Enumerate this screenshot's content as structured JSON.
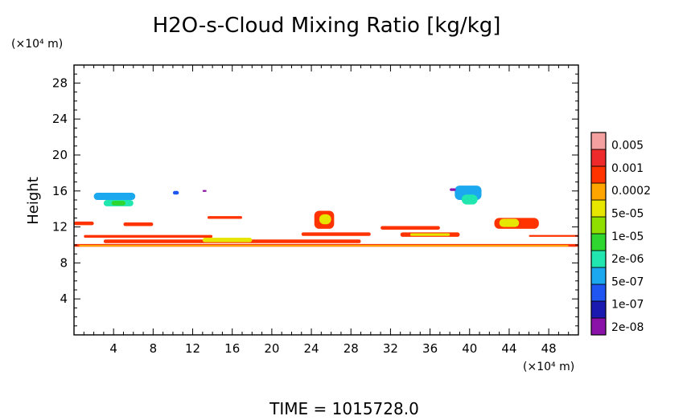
{
  "chart_data": {
    "type": "heatmap",
    "title": "H2O-s-Cloud Mixing Ratio [kg/kg]",
    "ylabel": "Height",
    "y_unit": "(×10⁴ m)",
    "x_unit": "(×10⁴ m)",
    "xlim": [
      0,
      51
    ],
    "ylim": [
      0,
      30
    ],
    "x_ticks": [
      4,
      8,
      12,
      16,
      20,
      24,
      28,
      32,
      36,
      40,
      44,
      48
    ],
    "y_ticks": [
      4,
      8,
      12,
      16,
      20,
      24,
      28
    ],
    "grid": false,
    "footer": "TIME  =  1015728.0",
    "colorbar": {
      "colors": [
        "#8a12a8",
        "#1a1ab0",
        "#1f55f0",
        "#1ba8ee",
        "#22e6b0",
        "#2fd62f",
        "#8fe000",
        "#e6e600",
        "#ffa500",
        "#ff3300",
        "#ee2a2a",
        "#f5a0a0"
      ],
      "labels": [
        "2e-08",
        "1e-07",
        "5e-07",
        "2e-06",
        "1e-05",
        "5e-05",
        "0.0002",
        "0.001",
        "0.005"
      ]
    },
    "regions": [
      {
        "level": 9,
        "x": [
          0,
          51
        ],
        "y": [
          9.8,
          10.1
        ]
      },
      {
        "level": 8,
        "x": [
          0.5,
          50
        ],
        "y": [
          9.9,
          10.0
        ]
      },
      {
        "level": 9,
        "x": [
          3,
          29
        ],
        "y": [
          10.2,
          10.6
        ]
      },
      {
        "level": 7,
        "x": [
          13,
          18
        ],
        "y": [
          10.3,
          10.8
        ]
      },
      {
        "level": 9,
        "x": [
          1,
          14
        ],
        "y": [
          10.8,
          11.1
        ]
      },
      {
        "level": 9,
        "x": [
          23,
          30
        ],
        "y": [
          11.0,
          11.4
        ]
      },
      {
        "level": 9,
        "x": [
          33,
          39
        ],
        "y": [
          10.9,
          11.4
        ]
      },
      {
        "level": 7,
        "x": [
          34,
          38
        ],
        "y": [
          11.0,
          11.3
        ]
      },
      {
        "level": 9,
        "x": [
          46,
          51
        ],
        "y": [
          10.9,
          11.1
        ]
      },
      {
        "level": 9,
        "x": [
          31,
          37
        ],
        "y": [
          11.7,
          12.1
        ]
      },
      {
        "level": 9,
        "x": [
          0,
          2
        ],
        "y": [
          12.2,
          12.6
        ]
      },
      {
        "level": 9,
        "x": [
          5,
          8
        ],
        "y": [
          12.1,
          12.5
        ]
      },
      {
        "level": 9,
        "x": [
          24.3,
          26.3
        ],
        "y": [
          11.8,
          13.8
        ]
      },
      {
        "level": 7,
        "x": [
          24.8,
          26.0
        ],
        "y": [
          12.3,
          13.4
        ]
      },
      {
        "level": 9,
        "x": [
          42.5,
          47
        ],
        "y": [
          11.8,
          13.0
        ]
      },
      {
        "level": 7,
        "x": [
          43,
          45
        ],
        "y": [
          12.0,
          12.9
        ]
      },
      {
        "level": 9,
        "x": [
          13.5,
          17
        ],
        "y": [
          12.9,
          13.2
        ]
      },
      {
        "level": 3,
        "x": [
          2.0,
          6.2
        ],
        "y": [
          15.0,
          15.8
        ]
      },
      {
        "level": 4,
        "x": [
          3.0,
          6.0
        ],
        "y": [
          14.3,
          15.0
        ]
      },
      {
        "level": 5,
        "x": [
          3.8,
          5.2
        ],
        "y": [
          14.4,
          14.9
        ]
      },
      {
        "level": 3,
        "x": [
          38.5,
          41.2
        ],
        "y": [
          15.0,
          16.6
        ]
      },
      {
        "level": 4,
        "x": [
          39.2,
          40.8
        ],
        "y": [
          14.5,
          15.6
        ]
      },
      {
        "level": 2,
        "x": [
          10.0,
          10.6
        ],
        "y": [
          15.6,
          16.0
        ]
      },
      {
        "level": 0,
        "x": [
          13.0,
          13.4
        ],
        "y": [
          15.9,
          16.1
        ]
      },
      {
        "level": 0,
        "x": [
          38.0,
          38.6
        ],
        "y": [
          16.0,
          16.3
        ]
      }
    ]
  }
}
